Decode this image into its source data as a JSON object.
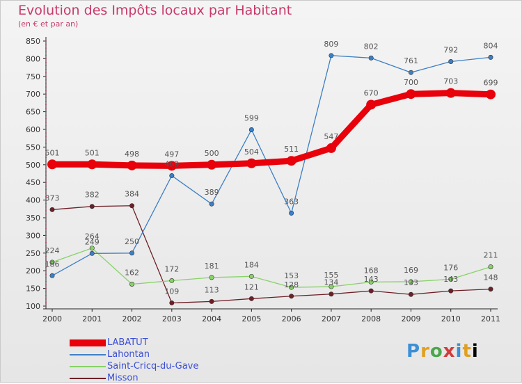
{
  "chart_data": {
    "type": "line",
    "title": "Evolution des Impôts locaux par Habitant",
    "subtitle": "(en € et par an)",
    "xlabel": "",
    "ylabel": "",
    "x": [
      "2000",
      "2001",
      "2002",
      "2003",
      "2004",
      "2005",
      "2006",
      "2007",
      "2008",
      "2009",
      "2010",
      "2011"
    ],
    "ylim": [
      100,
      850
    ],
    "yticks": [
      100,
      150,
      200,
      250,
      300,
      350,
      400,
      450,
      500,
      550,
      600,
      650,
      700,
      750,
      800,
      850
    ],
    "grid": false,
    "legend_position": "bottom-left",
    "series": [
      {
        "name": "LABATUT",
        "color": "#e8000b",
        "values": [
          501,
          501,
          498,
          497,
          500,
          504,
          511,
          547,
          670,
          700,
          703,
          699
        ]
      },
      {
        "name": "Lahontan",
        "color": "#3d7fc4",
        "values": [
          186,
          249,
          250,
          469,
          389,
          599,
          363,
          809,
          802,
          761,
          792,
          804
        ]
      },
      {
        "name": "Saint-Cricq-du-Gave",
        "color": "#88d168",
        "values": [
          224,
          264,
          162,
          172,
          181,
          184,
          153,
          155,
          168,
          169,
          176,
          211
        ]
      },
      {
        "name": "Misson",
        "color": "#6e1f26",
        "values": [
          373,
          382,
          384,
          109,
          113,
          121,
          128,
          134,
          143,
          133,
          143,
          148
        ]
      }
    ]
  },
  "logo": {
    "text": "Proxiti"
  }
}
